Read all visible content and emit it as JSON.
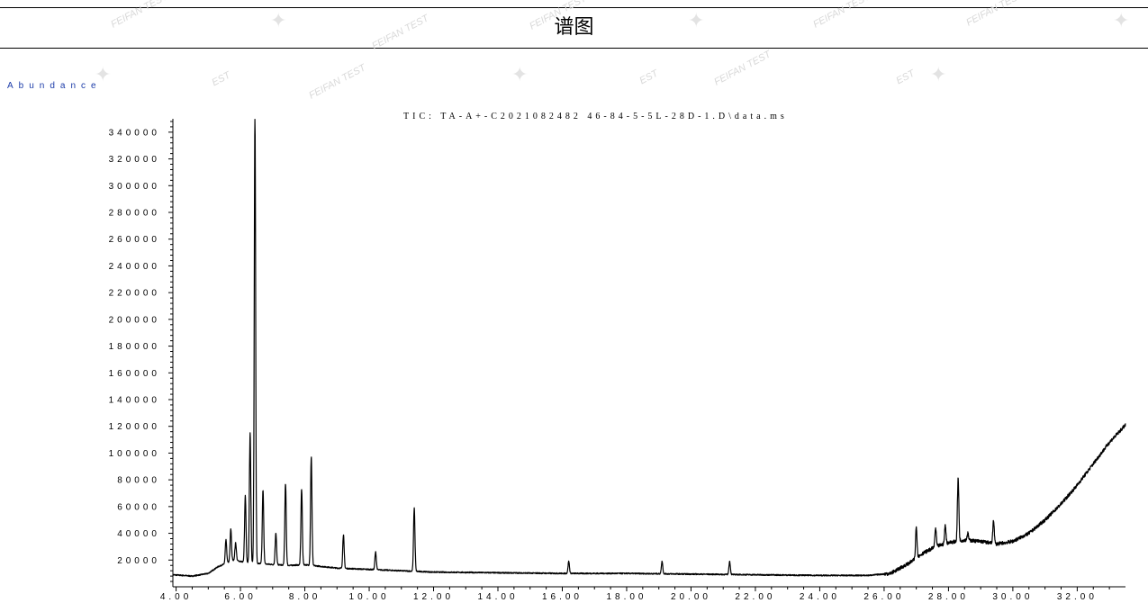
{
  "header": {
    "title": "谱图"
  },
  "watermark": {
    "text": "FEIFAN TEST",
    "fragment": "EST"
  },
  "chart_data": {
    "type": "line",
    "ylabel": "Abundance",
    "series_label": "TIC: TA-A+-C2021082482 46-84-5-5L-28D-1.D\\data.ms",
    "ylim": [
      0,
      350000
    ],
    "xlim": [
      3.9,
      33.5
    ],
    "yticks": [
      20000,
      40000,
      60000,
      80000,
      100000,
      120000,
      140000,
      160000,
      180000,
      200000,
      220000,
      240000,
      260000,
      280000,
      300000,
      320000,
      340000
    ],
    "ytick_labels": [
      "20000",
      "40000",
      "60000",
      "80000",
      "100000",
      "120000",
      "140000",
      "160000",
      "180000",
      "200000",
      "220000",
      "240000",
      "260000",
      "280000",
      "300000",
      "320000",
      "340000"
    ],
    "xticks": [
      4.0,
      6.0,
      8.0,
      10.0,
      12.0,
      14.0,
      16.0,
      18.0,
      20.0,
      22.0,
      24.0,
      26.0,
      28.0,
      30.0,
      32.0
    ],
    "xtick_labels": [
      "4.00",
      "6.00",
      "8.00",
      "10.00",
      "12.00",
      "14.00",
      "16.00",
      "18.00",
      "20.00",
      "22.00",
      "24.00",
      "26.00",
      "28.00",
      "30.00",
      "32.00"
    ],
    "baseline": [
      [
        3.9,
        9000
      ],
      [
        4.5,
        8000
      ],
      [
        5.0,
        10000
      ],
      [
        5.3,
        15000
      ],
      [
        5.8,
        20000
      ],
      [
        6.2,
        18000
      ],
      [
        6.8,
        17000
      ],
      [
        7.5,
        16000
      ],
      [
        8.0,
        16500
      ],
      [
        9.0,
        14000
      ],
      [
        10.0,
        13000
      ],
      [
        12.0,
        11000
      ],
      [
        14.0,
        10500
      ],
      [
        16.0,
        10000
      ],
      [
        18.0,
        10000
      ],
      [
        20.0,
        9500
      ],
      [
        22.0,
        9000
      ],
      [
        24.0,
        8500
      ],
      [
        25.5,
        8500
      ],
      [
        26.2,
        10000
      ],
      [
        26.8,
        18000
      ],
      [
        27.2,
        25000
      ],
      [
        27.6,
        30000
      ],
      [
        28.0,
        33000
      ],
      [
        28.5,
        35000
      ],
      [
        29.0,
        34000
      ],
      [
        29.5,
        32000
      ],
      [
        30.0,
        34000
      ],
      [
        30.5,
        40000
      ],
      [
        31.0,
        50000
      ],
      [
        31.5,
        62000
      ],
      [
        32.0,
        76000
      ],
      [
        32.5,
        92000
      ],
      [
        33.0,
        108000
      ],
      [
        33.5,
        121000
      ],
      [
        34.0,
        128000
      ],
      [
        34.4,
        130000
      ],
      [
        34.8,
        128000
      ]
    ],
    "peaks": [
      {
        "rt": 5.55,
        "height": 35000
      },
      {
        "rt": 5.7,
        "height": 43000
      },
      {
        "rt": 5.85,
        "height": 33000
      },
      {
        "rt": 6.15,
        "height": 68000
      },
      {
        "rt": 6.3,
        "height": 115000
      },
      {
        "rt": 6.45,
        "height": 350000
      },
      {
        "rt": 6.7,
        "height": 72000
      },
      {
        "rt": 7.1,
        "height": 40000
      },
      {
        "rt": 7.4,
        "height": 77000
      },
      {
        "rt": 7.9,
        "height": 73000
      },
      {
        "rt": 8.2,
        "height": 97000
      },
      {
        "rt": 9.2,
        "height": 39000
      },
      {
        "rt": 10.2,
        "height": 26000
      },
      {
        "rt": 11.4,
        "height": 59000
      },
      {
        "rt": 16.2,
        "height": 19000
      },
      {
        "rt": 19.1,
        "height": 19000
      },
      {
        "rt": 21.2,
        "height": 19000
      },
      {
        "rt": 27.0,
        "height": 45000
      },
      {
        "rt": 27.6,
        "height": 44000
      },
      {
        "rt": 27.9,
        "height": 46000
      },
      {
        "rt": 28.3,
        "height": 81000
      },
      {
        "rt": 28.6,
        "height": 40000
      },
      {
        "rt": 29.4,
        "height": 50000
      }
    ]
  }
}
